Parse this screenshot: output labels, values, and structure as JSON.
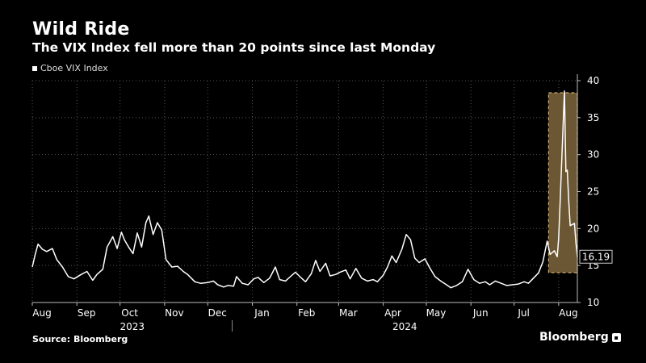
{
  "header": {
    "title": "Wild Ride",
    "subtitle": "The VIX Index fell more than 20 points since last Monday"
  },
  "legend": {
    "label": "Cboe VIX Index"
  },
  "footer": {
    "source": "Source: Bloomberg",
    "brand": "Bloomberg"
  },
  "colors": {
    "line": "#ffffff",
    "highlight_fill": "#6b5734",
    "highlight_border": "#c9a86a",
    "grid": "#555555",
    "background": "#000000"
  },
  "chart_data": {
    "type": "line",
    "series": [
      {
        "name": "Cboe VIX Index",
        "values": [
          [
            "2023-08-01",
            14.8
          ],
          [
            "2023-08-03",
            16.5
          ],
          [
            "2023-08-05",
            17.9
          ],
          [
            "2023-08-08",
            17.2
          ],
          [
            "2023-08-11",
            16.9
          ],
          [
            "2023-08-15",
            17.3
          ],
          [
            "2023-08-18",
            15.8
          ],
          [
            "2023-08-22",
            14.8
          ],
          [
            "2023-08-26",
            13.5
          ],
          [
            "2023-08-30",
            13.2
          ],
          [
            "2023-09-04",
            13.8
          ],
          [
            "2023-09-08",
            14.2
          ],
          [
            "2023-09-12",
            13.0
          ],
          [
            "2023-09-15",
            13.8
          ],
          [
            "2023-09-19",
            14.5
          ],
          [
            "2023-09-22",
            17.5
          ],
          [
            "2023-09-26",
            18.9
          ],
          [
            "2023-09-29",
            17.3
          ],
          [
            "2023-10-02",
            19.5
          ],
          [
            "2023-10-04",
            18.5
          ],
          [
            "2023-10-07",
            17.5
          ],
          [
            "2023-10-10",
            16.6
          ],
          [
            "2023-10-13",
            19.4
          ],
          [
            "2023-10-16",
            17.5
          ],
          [
            "2023-10-19",
            20.8
          ],
          [
            "2023-10-21",
            21.7
          ],
          [
            "2023-10-24",
            19.2
          ],
          [
            "2023-10-27",
            20.8
          ],
          [
            "2023-10-30",
            19.8
          ],
          [
            "2023-11-02",
            15.8
          ],
          [
            "2023-11-06",
            14.8
          ],
          [
            "2023-11-10",
            14.9
          ],
          [
            "2023-11-14",
            14.2
          ],
          [
            "2023-11-17",
            13.8
          ],
          [
            "2023-11-22",
            12.8
          ],
          [
            "2023-11-26",
            12.6
          ],
          [
            "2023-12-01",
            12.7
          ],
          [
            "2023-12-05",
            12.9
          ],
          [
            "2023-12-08",
            12.4
          ],
          [
            "2023-12-12",
            12.1
          ],
          [
            "2023-12-15",
            12.3
          ],
          [
            "2023-12-19",
            12.2
          ],
          [
            "2023-12-21",
            13.5
          ],
          [
            "2023-12-25",
            12.6
          ],
          [
            "2023-12-29",
            12.4
          ],
          [
            "2024-01-02",
            13.2
          ],
          [
            "2024-01-05",
            13.4
          ],
          [
            "2024-01-09",
            12.7
          ],
          [
            "2024-01-13",
            13.3
          ],
          [
            "2024-01-17",
            14.8
          ],
          [
            "2024-01-20",
            13.1
          ],
          [
            "2024-01-24",
            12.9
          ],
          [
            "2024-01-28",
            13.6
          ],
          [
            "2024-01-31",
            14.1
          ],
          [
            "2024-02-03",
            13.5
          ],
          [
            "2024-02-07",
            12.8
          ],
          [
            "2024-02-11",
            13.9
          ],
          [
            "2024-02-14",
            15.7
          ],
          [
            "2024-02-17",
            14.2
          ],
          [
            "2024-02-21",
            15.3
          ],
          [
            "2024-02-24",
            13.6
          ],
          [
            "2024-02-28",
            13.8
          ],
          [
            "2024-03-02",
            14.1
          ],
          [
            "2024-03-06",
            14.4
          ],
          [
            "2024-03-09",
            13.2
          ],
          [
            "2024-03-13",
            14.6
          ],
          [
            "2024-03-17",
            13.3
          ],
          [
            "2024-03-21",
            12.9
          ],
          [
            "2024-03-25",
            13.1
          ],
          [
            "2024-03-28",
            12.8
          ],
          [
            "2024-04-01",
            13.7
          ],
          [
            "2024-04-04",
            14.8
          ],
          [
            "2024-04-07",
            16.3
          ],
          [
            "2024-04-10",
            15.4
          ],
          [
            "2024-04-14",
            17.2
          ],
          [
            "2024-04-17",
            19.2
          ],
          [
            "2024-04-20",
            18.5
          ],
          [
            "2024-04-23",
            16.0
          ],
          [
            "2024-04-26",
            15.4
          ],
          [
            "2024-04-30",
            15.9
          ],
          [
            "2024-05-03",
            14.8
          ],
          [
            "2024-05-07",
            13.5
          ],
          [
            "2024-05-11",
            12.9
          ],
          [
            "2024-05-15",
            12.4
          ],
          [
            "2024-05-18",
            12.0
          ],
          [
            "2024-05-22",
            12.3
          ],
          [
            "2024-05-26",
            12.8
          ],
          [
            "2024-05-30",
            14.5
          ],
          [
            "2024-06-03",
            13.1
          ],
          [
            "2024-06-07",
            12.6
          ],
          [
            "2024-06-11",
            12.8
          ],
          [
            "2024-06-14",
            12.4
          ],
          [
            "2024-06-18",
            12.9
          ],
          [
            "2024-06-22",
            12.6
          ],
          [
            "2024-06-26",
            12.3
          ],
          [
            "2024-06-30",
            12.4
          ],
          [
            "2024-07-04",
            12.5
          ],
          [
            "2024-07-08",
            12.8
          ],
          [
            "2024-07-11",
            12.6
          ],
          [
            "2024-07-15",
            13.4
          ],
          [
            "2024-07-18",
            14.0
          ],
          [
            "2024-07-21",
            15.5
          ],
          [
            "2024-07-24",
            18.3
          ],
          [
            "2024-07-26",
            16.5
          ],
          [
            "2024-07-29",
            17.0
          ],
          [
            "2024-07-31",
            16.2
          ],
          [
            "2024-08-01",
            18.6
          ],
          [
            "2024-08-02",
            23.4
          ],
          [
            "2024-08-05",
            38.6
          ],
          [
            "2024-08-06",
            27.7
          ],
          [
            "2024-08-07",
            27.9
          ],
          [
            "2024-08-08",
            23.8
          ],
          [
            "2024-08-09",
            20.4
          ],
          [
            "2024-08-12",
            20.7
          ],
          [
            "2024-08-13",
            18.1
          ],
          [
            "2024-08-14",
            16.19
          ]
        ]
      }
    ],
    "x_ticks": [
      "Aug",
      "Sep",
      "Oct",
      "Nov",
      "Dec",
      "Jan",
      "Feb",
      "Mar",
      "Apr",
      "May",
      "Jun",
      "Jul",
      "Aug"
    ],
    "x_tick_dates": [
      "2023-08-01",
      "2023-09-01",
      "2023-10-01",
      "2023-11-01",
      "2023-12-01",
      "2024-01-01",
      "2024-02-01",
      "2024-03-01",
      "2024-04-01",
      "2024-05-01",
      "2024-06-01",
      "2024-07-01",
      "2024-08-01"
    ],
    "year_labels": [
      "2023",
      "2024"
    ],
    "y_ticks": [
      10,
      15,
      20,
      25,
      30,
      35,
      40
    ],
    "ylim": [
      10,
      40
    ],
    "xlim": [
      "2023-08-01",
      "2024-08-14"
    ],
    "last_value_label": "16.19",
    "highlight": {
      "from": "2024-07-25",
      "to": "2024-08-14"
    },
    "grid": true,
    "y_axis_side": "right",
    "legend_position": "top-left"
  }
}
